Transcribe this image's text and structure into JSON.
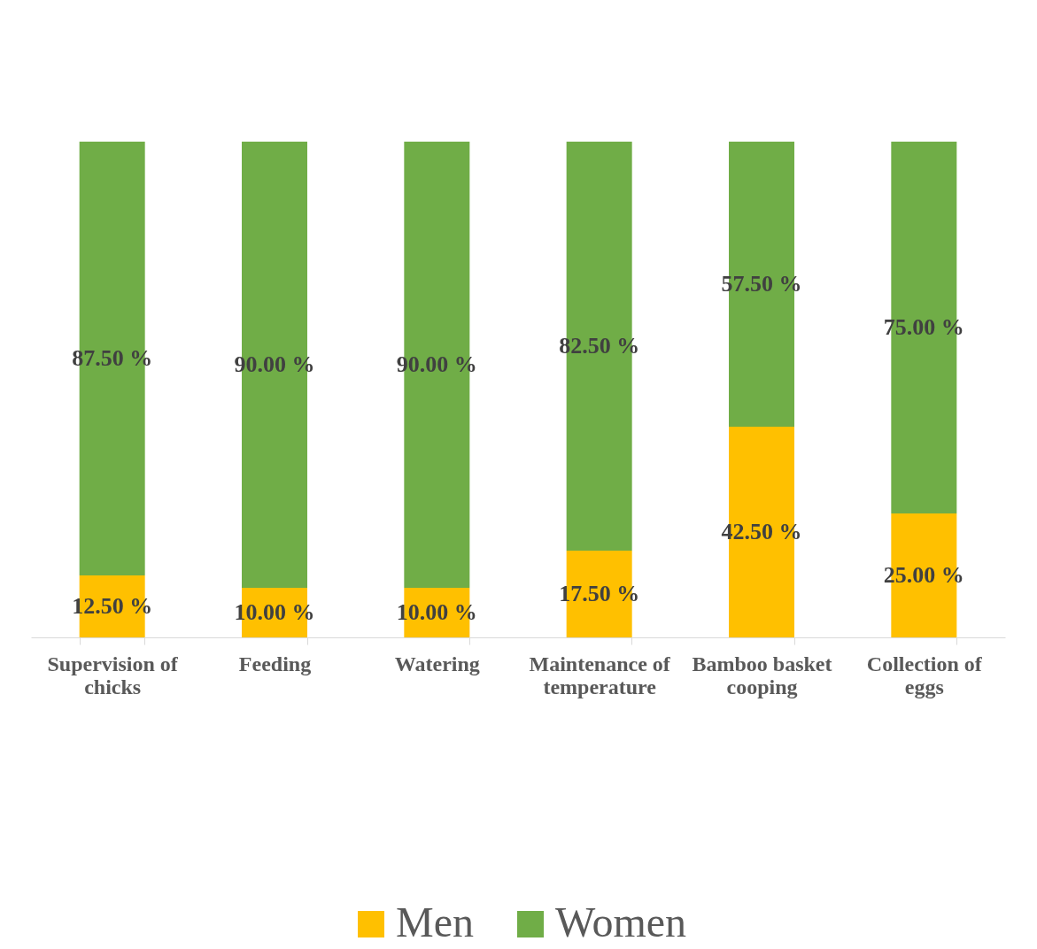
{
  "chart_data": {
    "type": "bar",
    "stacked": true,
    "data_labels": false,
    "legend": "bottom",
    "tick_labels": "x",
    "categories": [
      "Supervision of chicks",
      "Feeding",
      "Watering",
      "Maintenance of temperature",
      "Bamboo basket cooping",
      "Collection of eggs"
    ],
    "series": [
      {
        "name": "Men",
        "color": "#ffc000",
        "values": [
          12.5,
          10,
          10,
          17.5,
          42.5,
          25
        ],
        "value_labels": [
          "12.50 %",
          "10.00 %",
          "10.00 %",
          "17.50 %",
          "42.50 %",
          "25.00 %"
        ]
      },
      {
        "name": "Women",
        "color": "#70ad47",
        "values": [
          87.5,
          90,
          90,
          82.5,
          57.5,
          75
        ],
        "value_labels": [
          "87.50 %",
          "90.00 %",
          "90.00 %",
          "82.50 %",
          "57.50 %",
          "75.00 %"
        ]
      }
    ]
  }
}
